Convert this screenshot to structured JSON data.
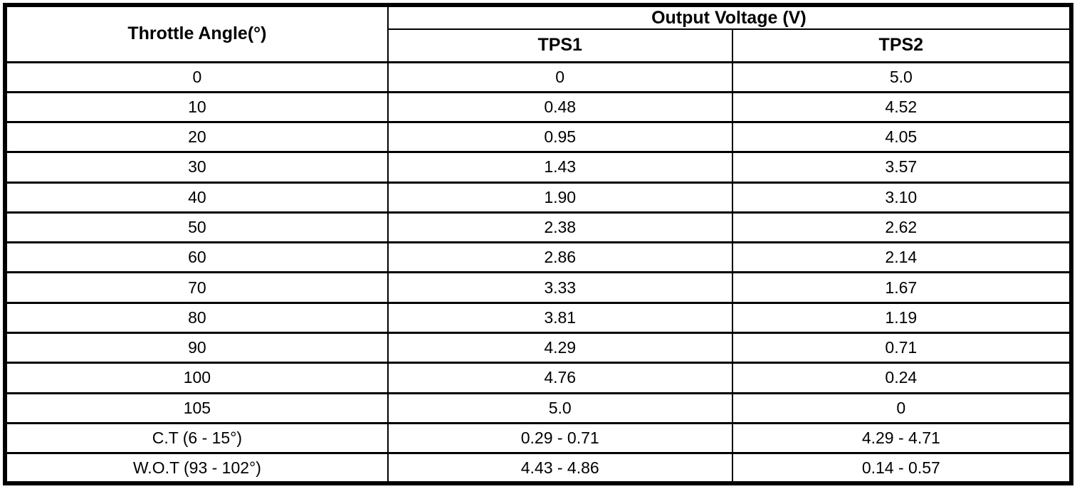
{
  "table": {
    "angle_header": "Throttle Angle(°)",
    "voltage_group_header": "Output Voltage (V)",
    "tps1_header": "TPS1",
    "tps2_header": "TPS2",
    "rows": [
      {
        "angle": "0",
        "tps1": "0",
        "tps2": "5.0"
      },
      {
        "angle": "10",
        "tps1": "0.48",
        "tps2": "4.52"
      },
      {
        "angle": "20",
        "tps1": "0.95",
        "tps2": "4.05"
      },
      {
        "angle": "30",
        "tps1": "1.43",
        "tps2": "3.57"
      },
      {
        "angle": "40",
        "tps1": "1.90",
        "tps2": "3.10"
      },
      {
        "angle": "50",
        "tps1": "2.38",
        "tps2": "2.62"
      },
      {
        "angle": "60",
        "tps1": "2.86",
        "tps2": "2.14"
      },
      {
        "angle": "70",
        "tps1": "3.33",
        "tps2": "1.67"
      },
      {
        "angle": "80",
        "tps1": "3.81",
        "tps2": "1.19"
      },
      {
        "angle": "90",
        "tps1": "4.29",
        "tps2": "0.71"
      },
      {
        "angle": "100",
        "tps1": "4.76",
        "tps2": "0.24"
      },
      {
        "angle": "105",
        "tps1": "5.0",
        "tps2": "0"
      },
      {
        "angle": "C.T (6 - 15°)",
        "tps1": "0.29 - 0.71",
        "tps2": "4.29 - 4.71"
      },
      {
        "angle": "W.O.T (93 - 102°)",
        "tps1": "4.43 - 4.86",
        "tps2": "0.14 - 0.57"
      }
    ],
    "colors": {
      "border": "#000000",
      "background": "#ffffff",
      "text": "#000000"
    }
  }
}
